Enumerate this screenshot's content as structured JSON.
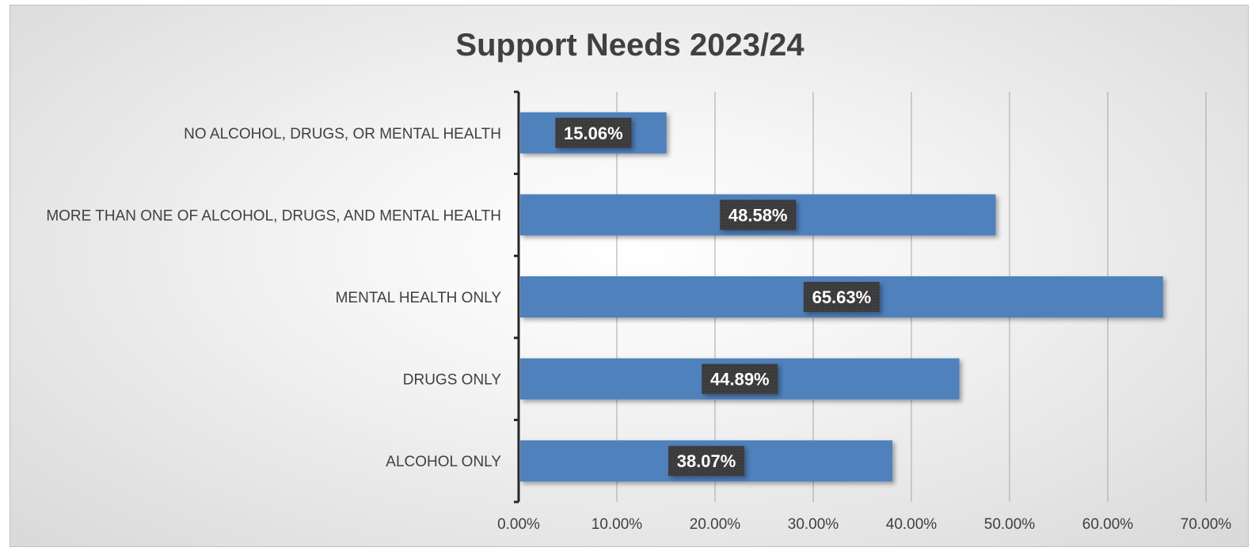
{
  "chart_data": {
    "type": "bar",
    "orientation": "horizontal",
    "title": "Support Needs 2023/24",
    "categories": [
      "NO ALCOHOL, DRUGS, OR MENTAL HEALTH",
      "MORE THAN ONE OF ALCOHOL, DRUGS, AND MENTAL HEALTH",
      "MENTAL HEALTH ONLY",
      "DRUGS ONLY",
      "ALCOHOL ONLY"
    ],
    "values": [
      15.06,
      48.58,
      65.63,
      44.89,
      38.07
    ],
    "data_labels": [
      "15.06%",
      "48.58%",
      "65.63%",
      "44.89%",
      "38.07%"
    ],
    "xlim": [
      0,
      70
    ],
    "x_ticks": [
      0,
      10,
      20,
      30,
      40,
      50,
      60,
      70
    ],
    "x_tick_labels": [
      "0.00%",
      "10.00%",
      "20.00%",
      "30.00%",
      "40.00%",
      "50.00%",
      "60.00%",
      "70.00%"
    ],
    "xlabel": "",
    "ylabel": "",
    "grid": "vertical",
    "legend": "none",
    "bar_color": "#4f81bd",
    "label_box_color": "#3a3a3a"
  }
}
